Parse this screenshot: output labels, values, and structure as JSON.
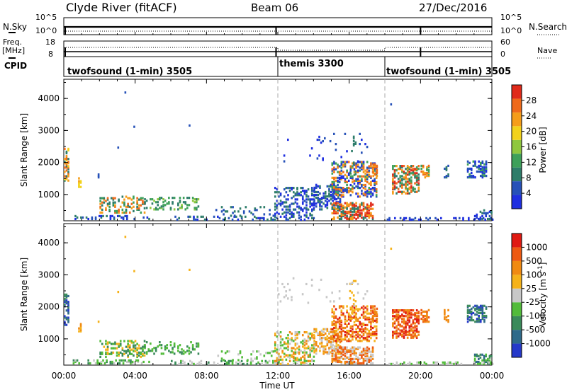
{
  "header": {
    "station": "Clyde River (fitACF)",
    "beam": "Beam 06",
    "date": "27/Dec/2016"
  },
  "top_panels": {
    "nsky_label": "N.Sky",
    "nsky_ticks": [
      "10^5",
      "10^0"
    ],
    "nsearch_label": "N.Search",
    "freq_label_1": "Freq.",
    "freq_label_2": "[MHz]",
    "freq_ticks": [
      "18",
      "8"
    ],
    "nave_ticks": [
      "60",
      "0"
    ],
    "nave_label": "Nave",
    "cpid_label": "CPID",
    "cpid_segments": [
      {
        "name": "twofsound (1-min) 3505",
        "start_hour": 0,
        "end_hour": 12
      },
      {
        "name": "themis 3300",
        "start_hour": 12,
        "end_hour": 18
      },
      {
        "name": "twofsound (1-min) 3505",
        "start_hour": 18,
        "end_hour": 24
      }
    ]
  },
  "chart_data": [
    {
      "type": "heatmap",
      "variable": "Power",
      "ylabel": "Slant Range [km]",
      "colorbar_label": "Power [dB]",
      "colorbar_ticks": [
        "28",
        "24",
        "20",
        "16",
        "12",
        "8",
        "4"
      ],
      "y_ticks": [
        "4000",
        "3000",
        "2000",
        "1000"
      ],
      "ylim": [
        180,
        4600
      ],
      "xlim": [
        0,
        24
      ],
      "colors": [
        "#1f2fe0",
        "#2651b8",
        "#2e7d6a",
        "#3ea05a",
        "#8fc73e",
        "#f2d21b",
        "#f59d1a",
        "#ef6a1a",
        "#e02a1a"
      ]
    },
    {
      "type": "heatmap",
      "variable": "Velocity",
      "ylabel": "Slant Range [km]",
      "colorbar_label": "Velocity [m s^-1]",
      "colorbar_ticks": [
        "1000",
        "500",
        "100",
        "25",
        "-25",
        "-100",
        "-500",
        "-1000"
      ],
      "y_ticks": [
        "4000",
        "3000",
        "2000",
        "1000"
      ],
      "ylim": [
        180,
        4600
      ],
      "xlim": [
        0,
        24
      ],
      "colors": [
        "#2639c9",
        "#2f6a8a",
        "#3a8a5a",
        "#52bb3a",
        "#c8c8c8",
        "#f5b21a",
        "#f08a12",
        "#ee5a12",
        "#e01a12"
      ]
    }
  ],
  "x_axis": {
    "ticks": [
      "00:00",
      "04:00",
      "08:00",
      "12:00",
      "16:00",
      "20:00",
      "00:00"
    ],
    "label": "Time UT"
  }
}
